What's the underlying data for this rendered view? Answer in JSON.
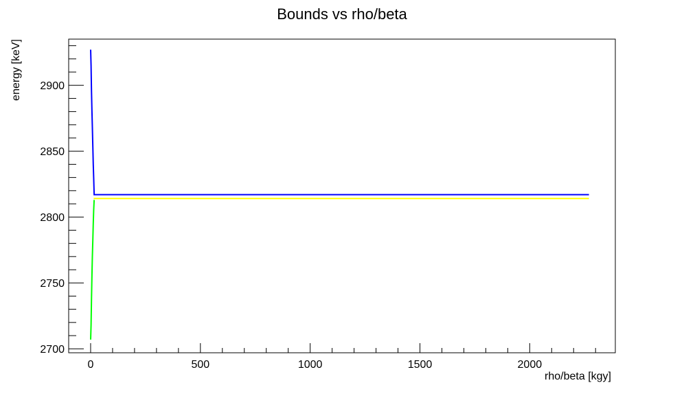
{
  "chart_data": {
    "type": "line",
    "title": "Bounds vs rho/beta",
    "xlabel": "rho/beta [kgy]",
    "ylabel": "energy [keV]",
    "xlim": [
      -100,
      2390
    ],
    "ylim": [
      2697,
      2935
    ],
    "x_ticks": [
      0,
      500,
      1000,
      1500,
      2000
    ],
    "x_tick_labels": [
      "0",
      "500",
      "1000",
      "1500",
      "2000"
    ],
    "y_ticks": [
      2700,
      2750,
      2800,
      2850,
      2900
    ],
    "y_tick_labels": [
      "2700",
      "2750",
      "2800",
      "2850",
      "2900"
    ],
    "grid": false,
    "legend": "none",
    "series": [
      {
        "color": "#0000ff",
        "x": [
          0,
          2,
          4,
          6,
          8,
          10,
          12,
          14,
          16,
          2270
        ],
        "y": [
          2927,
          2915,
          2896,
          2880,
          2868,
          2853,
          2840,
          2830,
          2817,
          2817
        ]
      },
      {
        "color": "#00ff00",
        "x": [
          0,
          2,
          4,
          6,
          8,
          10,
          12,
          14,
          16
        ],
        "y": [
          2707,
          2718,
          2737,
          2756,
          2770,
          2783,
          2795,
          2805,
          2813
        ]
      },
      {
        "color": "#ffff00",
        "x": [
          14,
          2270
        ],
        "y": [
          2814,
          2814
        ]
      }
    ]
  }
}
